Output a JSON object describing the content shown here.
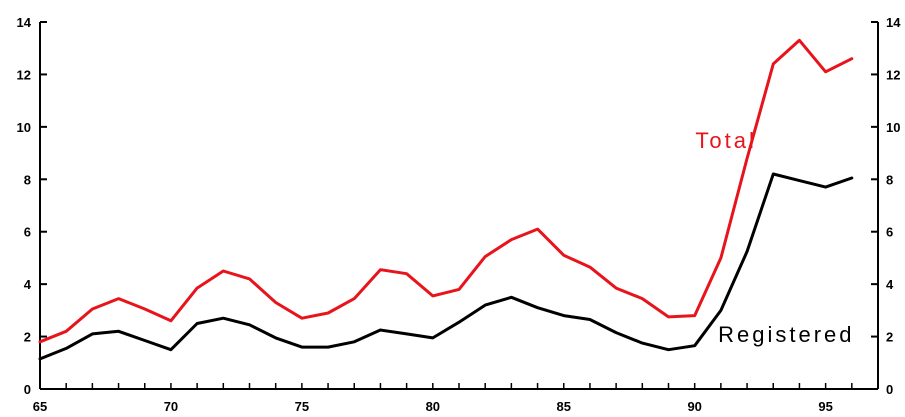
{
  "chart_data": {
    "type": "line",
    "title": "",
    "xlabel": "",
    "ylabel": "",
    "xlim": [
      65,
      97
    ],
    "ylim": [
      0,
      14
    ],
    "x_ticks": [
      "65",
      "70",
      "75",
      "80",
      "85",
      "90",
      "95"
    ],
    "y_ticks": [
      "0",
      "2",
      "4",
      "6",
      "8",
      "10",
      "12",
      "14"
    ],
    "grid": false,
    "legend": "none (series labeled directly on lines)",
    "x": [
      65,
      66,
      67,
      68,
      69,
      70,
      71,
      72,
      73,
      74,
      75,
      76,
      77,
      78,
      79,
      80,
      81,
      82,
      83,
      84,
      85,
      86,
      87,
      88,
      89,
      90,
      91,
      92,
      93,
      94,
      95,
      96
    ],
    "series": [
      {
        "name": "Total",
        "color": "#e8141c",
        "values": [
          1.8,
          2.2,
          3.05,
          3.45,
          3.05,
          2.6,
          3.85,
          4.5,
          4.2,
          3.3,
          2.7,
          2.9,
          3.45,
          4.55,
          4.4,
          3.55,
          3.8,
          5.05,
          5.7,
          6.1,
          5.1,
          4.65,
          3.85,
          3.45,
          2.75,
          2.8,
          5.0,
          8.8,
          12.4,
          13.3,
          12.1,
          12.6
        ]
      },
      {
        "name": "Registered",
        "color": "#000000",
        "values": [
          1.15,
          1.55,
          2.1,
          2.2,
          1.85,
          1.5,
          2.5,
          2.7,
          2.45,
          1.95,
          1.6,
          1.6,
          1.8,
          2.25,
          2.1,
          1.95,
          2.55,
          3.2,
          3.5,
          3.1,
          2.8,
          2.65,
          2.15,
          1.75,
          1.5,
          1.65,
          3.0,
          5.25,
          8.2,
          7.95,
          7.7,
          8.05
        ]
      }
    ]
  }
}
